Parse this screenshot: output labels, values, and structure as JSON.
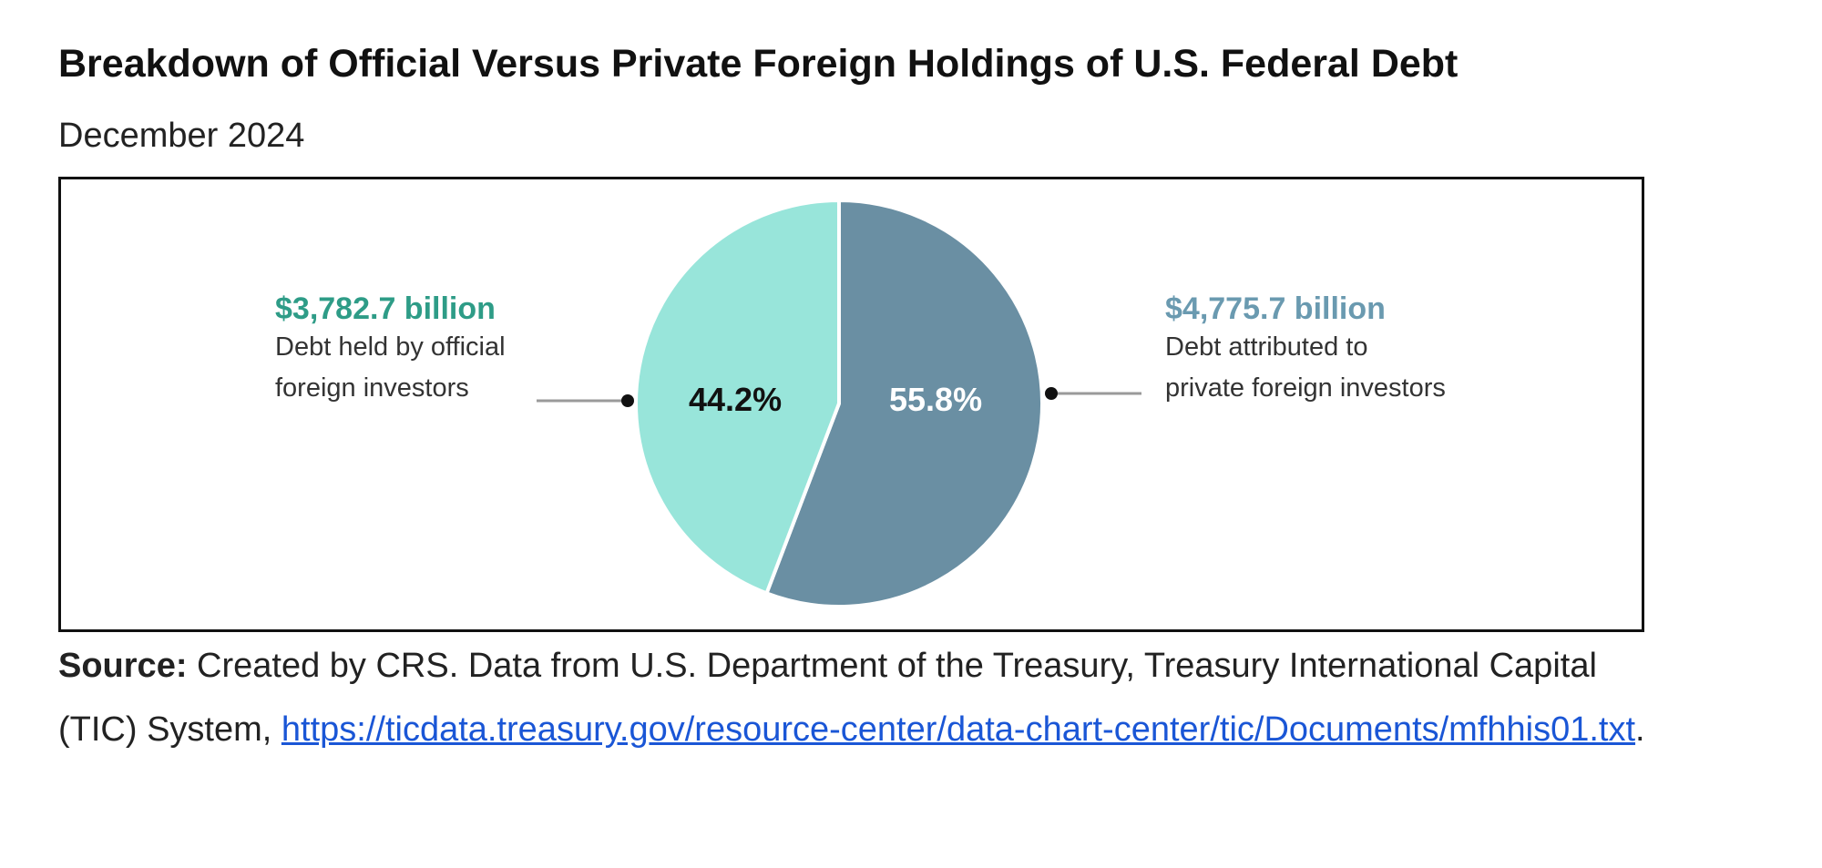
{
  "title": "Breakdown of Official Versus Private Foreign Holdings of U.S. Federal Debt",
  "subtitle": "December 2024",
  "chart_data": {
    "type": "pie",
    "title": "Breakdown of Official Versus Private Foreign Holdings of U.S. Federal Debt",
    "subtitle": "December 2024",
    "slices": [
      {
        "name": "official",
        "value_label": "$3,782.7 billion",
        "value": 3782.7,
        "percent": 44.2,
        "percent_label": "44.2%",
        "desc": [
          "Debt held by official",
          "foreign investors"
        ],
        "color": "#98E5DA",
        "label_color": "#2E9C87",
        "pct_color": "#111111"
      },
      {
        "name": "private",
        "value_label": "$4,775.7 billion",
        "value": 4775.7,
        "percent": 55.8,
        "percent_label": "55.8%",
        "desc": [
          "Debt attributed to",
          "private foreign investors"
        ],
        "color": "#6A8FA3",
        "label_color": "#6A9AB0",
        "pct_color": "#ffffff"
      }
    ],
    "units": "billion USD"
  },
  "source": {
    "label": "Source:",
    "text": " Created by CRS. Data from U.S. Department of the Treasury, Treasury International Capital",
    "text2": "(TIC) System, ",
    "link": "https://ticdata.treasury.gov/resource-center/data-chart-center/tic/Documents/mfhhis01.txt",
    "end": "."
  }
}
